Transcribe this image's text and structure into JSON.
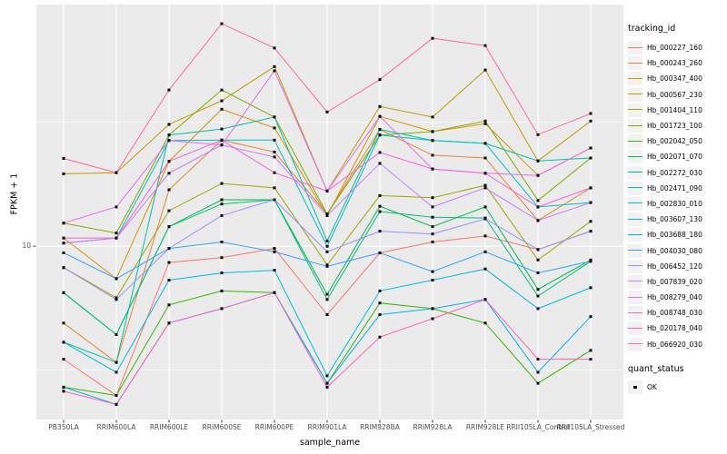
{
  "figure": {
    "y_axis": {
      "title": "FPKM + 1",
      "tick": "10"
    },
    "x_axis": {
      "title": "sample_name"
    },
    "legend": {
      "title": "tracking_id",
      "quant": {
        "title": "quant_status",
        "item": "OK"
      }
    },
    "colors": {
      "panel_bg": "#EBEBEB",
      "grid": "#FFFFFF",
      "legend_key_bg": "#F2F2F2",
      "marker": "#000000",
      "tick_text": "#4D4D4D"
    }
  },
  "chart_data": {
    "type": "line",
    "title": "",
    "xlabel": "sample_name",
    "ylabel": "FPKM + 1",
    "y_scale": "log10",
    "ylim": [
      2.0,
      94.4
    ],
    "y_ticks": [
      10
    ],
    "y_minor_ticks": [
      3.162,
      31.62
    ],
    "grid": "on",
    "legend_position": "right",
    "point_marker": "black-square",
    "x_categories": [
      "PB350LA",
      "RRIM600LA",
      "RRIM600LE",
      "RRIM600SE",
      "RRIM600PE",
      "RRIM901LA",
      "RRIM928BA",
      "RRIM928LA",
      "RRIM928LE",
      "RRII105LA_Control",
      "RRII105LA_Stressed"
    ],
    "series": [
      {
        "name": "Hb_000227_160",
        "color": "#F8766D",
        "values": [
          3.5,
          2.5,
          8.6,
          9.0,
          9.8,
          5.3,
          9.4,
          10.4,
          11.0,
          9.7,
          11.5
        ]
      },
      {
        "name": "Hb_000243_260",
        "color": "#EA8331",
        "values": [
          4.9,
          3.4,
          16.9,
          26.8,
          24.0,
          13.5,
          29.6,
          23.3,
          22.7,
          12.7,
          17.2
        ]
      },
      {
        "name": "Hb_000347_400",
        "color": "#D89000",
        "values": [
          10.8,
          7.4,
          22.0,
          35.7,
          30.0,
          13.3,
          33.4,
          29.0,
          31.2,
          19.3,
          24.9
        ]
      },
      {
        "name": "Hb_000567_230",
        "color": "#C09B00",
        "values": [
          19.6,
          19.8,
          31.0,
          38.6,
          53.0,
          16.7,
          36.6,
          33.2,
          51.4,
          22.1,
          32.0
        ]
      },
      {
        "name": "Hb_001404_110",
        "color": "#A3A500",
        "values": [
          8.2,
          6.2,
          13.9,
          17.9,
          17.2,
          8.4,
          16.0,
          15.7,
          17.6,
          8.8,
          12.6
        ]
      },
      {
        "name": "Hb_001723_100",
        "color": "#7CAE00",
        "values": [
          12.4,
          11.3,
          28.1,
          42.7,
          33.2,
          13.5,
          28.1,
          29.0,
          32.0,
          15.3,
          22.7
        ]
      },
      {
        "name": "Hb_002042_050",
        "color": "#39B600",
        "values": [
          2.7,
          2.5,
          5.8,
          6.6,
          6.5,
          2.8,
          5.9,
          5.6,
          4.9,
          2.8,
          3.8
        ]
      },
      {
        "name": "Hb_002071_070",
        "color": "#00BB4E",
        "values": [
          6.5,
          4.4,
          12.0,
          15.4,
          15.4,
          6.4,
          14.5,
          12.0,
          14.4,
          6.7,
          8.8
        ]
      },
      {
        "name": "Hb_002272_030",
        "color": "#00BF7D",
        "values": [
          6.5,
          4.4,
          12.0,
          14.8,
          15.4,
          6.1,
          13.8,
          13.1,
          13.0,
          6.3,
          8.7
        ]
      },
      {
        "name": "Hb_002471_090",
        "color": "#00C1A3",
        "values": [
          4.1,
          3.4,
          28.1,
          29.7,
          33.2,
          10.5,
          29.6,
          26.7,
          26.0,
          22.1,
          22.7
        ]
      },
      {
        "name": "Hb_002830_010",
        "color": "#00BFC4",
        "values": [
          10.3,
          10.8,
          26.7,
          26.8,
          26.8,
          10.0,
          28.1,
          26.7,
          26.0,
          14.4,
          15.0
        ]
      },
      {
        "name": "Hb_003607_130",
        "color": "#00BAE0",
        "values": [
          4.1,
          3.1,
          7.3,
          7.8,
          8.0,
          3.0,
          6.6,
          7.3,
          8.1,
          5.6,
          6.8
        ]
      },
      {
        "name": "Hb_003688_180",
        "color": "#00B0F6",
        "values": [
          2.7,
          2.3,
          4.9,
          5.6,
          6.5,
          2.8,
          5.3,
          5.6,
          6.1,
          3.1,
          5.2
        ]
      },
      {
        "name": "Hb_004030_080",
        "color": "#35A2FF",
        "values": [
          9.4,
          7.4,
          9.8,
          10.4,
          9.5,
          8.3,
          9.4,
          7.9,
          9.5,
          7.8,
          8.7
        ]
      },
      {
        "name": "Hb_006452_120",
        "color": "#9590FF",
        "values": [
          8.2,
          6.1,
          9.8,
          13.3,
          15.4,
          9.5,
          11.5,
          11.2,
          12.9,
          9.7,
          11.5
        ]
      },
      {
        "name": "Hb_007839_020",
        "color": "#C77CFF",
        "values": [
          10.3,
          10.8,
          19.7,
          25.6,
          22.9,
          13.3,
          21.6,
          14.4,
          17.2,
          12.7,
          15.0
        ]
      },
      {
        "name": "Hb_008279_040",
        "color": "#E76BF3",
        "values": [
          12.4,
          14.4,
          26.7,
          25.6,
          51.0,
          16.7,
          33.4,
          20.5,
          19.7,
          19.3,
          24.9
        ]
      },
      {
        "name": "Hb_008748_030",
        "color": "#FA62DB",
        "values": [
          10.8,
          10.8,
          22.0,
          26.8,
          19.8,
          16.7,
          23.9,
          20.5,
          19.7,
          14.4,
          17.2
        ]
      },
      {
        "name": "Hb_020178_040",
        "color": "#FF62BC",
        "values": [
          2.6,
          2.3,
          4.9,
          5.6,
          6.5,
          2.7,
          4.3,
          5.1,
          6.1,
          3.5,
          3.5
        ]
      },
      {
        "name": "Hb_066920_030",
        "color": "#FF6A98",
        "values": [
          22.6,
          19.8,
          42.7,
          79.0,
          63.0,
          34.8,
          47.0,
          69.0,
          64.5,
          28.2,
          34.3
        ]
      }
    ]
  }
}
